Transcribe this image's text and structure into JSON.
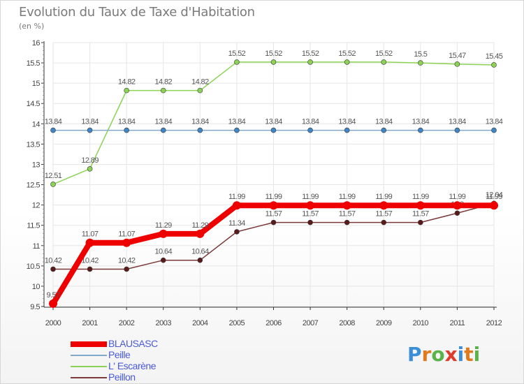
{
  "title": "Evolution du Taux de Taxe d'Habitation",
  "subtitle": "(en %)",
  "brand": {
    "letters": [
      "P",
      "r",
      "o",
      "x",
      "i",
      "t",
      "i"
    ],
    "colors": [
      "#3a8fd8",
      "#e07a1c",
      "#59b34a",
      "#e03a2a",
      "#3a8fd8",
      "#e07a1c",
      "#59b34a"
    ]
  },
  "chart_data": {
    "type": "line",
    "title": "Evolution du Taux de Taxe d'Habitation",
    "ylabel": "(en %)",
    "xlabel": "",
    "x": [
      "2000",
      "2001",
      "2002",
      "2003",
      "2004",
      "2005",
      "2006",
      "2007",
      "2008",
      "2009",
      "2010",
      "2011",
      "2012"
    ],
    "ylim": [
      9.5,
      16
    ],
    "yticks": [
      "9.5",
      "10",
      "10.5",
      "11",
      "11.5",
      "12",
      "12.5",
      "13",
      "13.5",
      "14",
      "14.5",
      "15",
      "15.5",
      "16"
    ],
    "grid": true,
    "legend": "bottom-left",
    "series": [
      {
        "name": "L' Escarène",
        "color": "#8cd355",
        "marker": "#8cd355",
        "width": "thin",
        "values": [
          12.51,
          12.89,
          14.82,
          14.82,
          14.82,
          15.52,
          15.52,
          15.52,
          15.52,
          15.52,
          15.5,
          15.47,
          15.45
        ],
        "labels": [
          "12.51",
          "12.89",
          "14.82",
          "14.82",
          "14.82",
          "15.52",
          "15.52",
          "15.52",
          "15.52",
          "15.52",
          "15.5",
          "15.47",
          "15.45"
        ]
      },
      {
        "name": "Peille",
        "color": "#7fa8c9",
        "marker": "#3f86c6",
        "width": "thin",
        "values": [
          13.84,
          13.84,
          13.84,
          13.84,
          13.84,
          13.84,
          13.84,
          13.84,
          13.84,
          13.84,
          13.84,
          13.84,
          13.84
        ],
        "labels": [
          "13.84",
          "13.84",
          "13.84",
          "13.84",
          "13.84",
          "13.84",
          "13.84",
          "13.84",
          "13.84",
          "13.84",
          "13.84",
          "13.84",
          "13.84"
        ]
      },
      {
        "name": "Peillon",
        "color": "#7a3a3a",
        "marker": "#5a1a1a",
        "width": "thin",
        "values": [
          10.42,
          10.42,
          10.42,
          10.64,
          10.64,
          11.34,
          11.57,
          11.57,
          11.57,
          11.57,
          11.57,
          11.8,
          12.04
        ],
        "labels": [
          "10.42",
          "10.42",
          "10.42",
          "10.64",
          "10.64",
          "11.34",
          "11.57",
          "11.57",
          "11.57",
          "11.57",
          "11.57",
          "11.8",
          "12.04"
        ]
      },
      {
        "name": "BLAUSASC",
        "color": "#ee0000",
        "marker": "#ee0000",
        "width": "thick",
        "values": [
          9.57,
          11.07,
          11.07,
          11.29,
          11.29,
          11.99,
          11.99,
          11.99,
          11.99,
          11.99,
          11.99,
          11.99,
          11.99
        ],
        "labels": [
          "9.57",
          "11.07",
          "11.07",
          "11.29",
          "11.29",
          "11.99",
          "11.99",
          "11.99",
          "11.99",
          "11.99",
          "11.99",
          "11.99",
          "11.99"
        ]
      }
    ],
    "legend_order": [
      "BLAUSASC",
      "Peille",
      "L' Escarène",
      "Peillon"
    ]
  }
}
